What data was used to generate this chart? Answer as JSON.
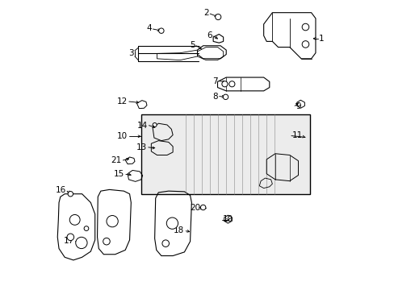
{
  "title": "",
  "background_color": "#ffffff",
  "line_color": "#000000",
  "label_color": "#000000",
  "fig_width": 4.89,
  "fig_height": 3.6,
  "dpi": 100
}
